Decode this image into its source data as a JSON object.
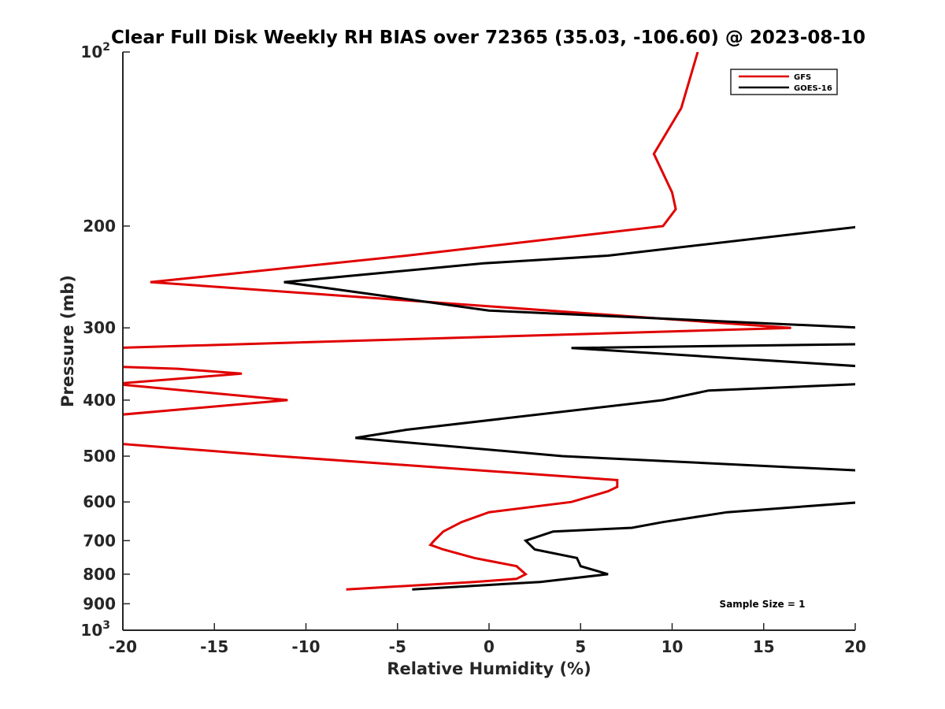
{
  "chart_data": {
    "type": "line",
    "title": "Clear Full Disk Weekly RH BIAS over 72365 (35.03, -106.60) @ 2023-08-10",
    "xlabel": "Relative Humidity (%)",
    "ylabel": "Pressure (mb)",
    "xlim": [
      -20,
      20
    ],
    "ylim": [
      1000,
      100
    ],
    "yscale": "log",
    "y_reversed": true,
    "grid": false,
    "legend_position": "top-right",
    "x_ticks": [
      "-20",
      "-15",
      "-10",
      "-5",
      "0",
      "5",
      "10",
      "15",
      "20"
    ],
    "y_ticks": [
      {
        "value": 100,
        "label": "10",
        "sup": "2"
      },
      {
        "value": 200,
        "label": "200",
        "sup": ""
      },
      {
        "value": 300,
        "label": "300",
        "sup": ""
      },
      {
        "value": 400,
        "label": "400",
        "sup": ""
      },
      {
        "value": 500,
        "label": "500",
        "sup": ""
      },
      {
        "value": 600,
        "label": "600",
        "sup": ""
      },
      {
        "value": 700,
        "label": "700",
        "sup": ""
      },
      {
        "value": 800,
        "label": "800",
        "sup": ""
      },
      {
        "value": 900,
        "label": "900",
        "sup": ""
      },
      {
        "value": 1000,
        "label": "10",
        "sup": "3"
      }
    ],
    "series": [
      {
        "name": "GFS",
        "color": "#e00000",
        "points": [
          [
            11.4,
            100
          ],
          [
            10.5,
            125
          ],
          [
            9.0,
            150
          ],
          [
            10.0,
            175
          ],
          [
            10.2,
            187
          ],
          [
            9.5,
            200
          ],
          [
            -4.5,
            225
          ],
          [
            -18.5,
            250
          ],
          [
            16.5,
            300
          ],
          [
            -20.5,
            325
          ],
          [
            -20.5,
            350
          ],
          [
            -17.0,
            353
          ],
          [
            -13.5,
            360
          ],
          [
            -20.5,
            375
          ],
          [
            -11.0,
            400
          ],
          [
            -20.5,
            425
          ],
          [
            -20.5,
            475
          ],
          [
            -11.5,
            500
          ],
          [
            7.0,
            550
          ],
          [
            7.0,
            565
          ],
          [
            6.5,
            575
          ],
          [
            4.5,
            600
          ],
          [
            0,
            625
          ],
          [
            -1.5,
            650
          ],
          [
            -2.5,
            675
          ],
          [
            -3.0,
            700
          ],
          [
            -3.2,
            712
          ],
          [
            -2.5,
            725
          ],
          [
            -0.8,
            750
          ],
          [
            1.5,
            775
          ],
          [
            2.0,
            800
          ],
          [
            1.5,
            815
          ],
          [
            -0.8,
            825
          ],
          [
            -7.8,
            850
          ]
        ]
      },
      {
        "name": "GOES-16",
        "color": "#000000",
        "points": [
          [
            20.5,
            200
          ],
          [
            6.5,
            225
          ],
          [
            -0.3,
            232
          ],
          [
            -11.2,
            250
          ],
          [
            0,
            280
          ],
          [
            20.5,
            300
          ],
          [
            20.5,
            320
          ],
          [
            4.5,
            325
          ],
          [
            20.5,
            350
          ],
          [
            20.5,
            375
          ],
          [
            12.0,
            385
          ],
          [
            9.5,
            400
          ],
          [
            -4.5,
            450
          ],
          [
            -7.3,
            465
          ],
          [
            4.0,
            500
          ],
          [
            20.5,
            530
          ],
          [
            20.5,
            600
          ],
          [
            13.0,
            625
          ],
          [
            9.5,
            650
          ],
          [
            7.8,
            665
          ],
          [
            3.5,
            675
          ],
          [
            2.0,
            700
          ],
          [
            2.5,
            725
          ],
          [
            4.8,
            750
          ],
          [
            5.0,
            775
          ],
          [
            6.5,
            800
          ],
          [
            2.8,
            825
          ],
          [
            -4.2,
            850
          ]
        ]
      }
    ],
    "annotation": "Sample Size = 1"
  }
}
